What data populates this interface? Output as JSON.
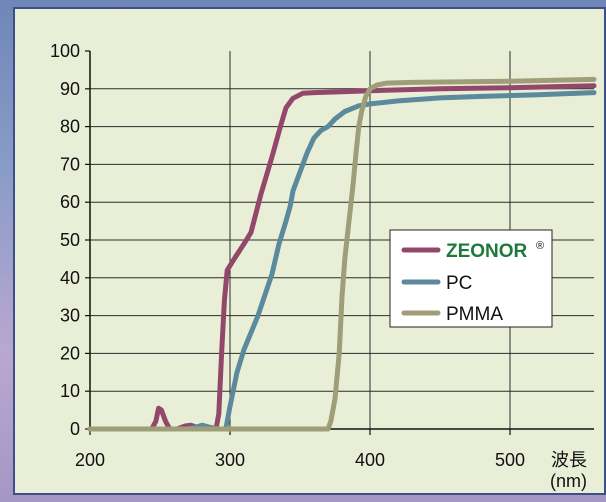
{
  "chart_data": {
    "type": "line",
    "x_unit_label": "波長",
    "x_unit_sub": "(nm)",
    "xlim": [
      200,
      560
    ],
    "ylim": [
      0,
      100
    ],
    "x_ticks": [
      200,
      300,
      400,
      500
    ],
    "y_ticks": [
      0,
      10,
      20,
      30,
      40,
      50,
      60,
      70,
      80,
      90,
      100
    ],
    "grid": "vertical at 300/400/500, horizontal at 10s",
    "legend_position": "center-right",
    "series": [
      {
        "name": "ZEONOR",
        "name_mark": "®",
        "color": "#93486b",
        "points": [
          [
            200,
            0
          ],
          [
            244,
            0
          ],
          [
            247,
            2
          ],
          [
            249,
            5.5
          ],
          [
            251,
            5
          ],
          [
            254,
            2
          ],
          [
            257,
            0
          ],
          [
            262,
            0
          ],
          [
            268,
            0.8
          ],
          [
            272,
            1
          ],
          [
            276,
            0.5
          ],
          [
            282,
            0
          ],
          [
            290,
            0
          ],
          [
            292,
            4
          ],
          [
            294,
            20
          ],
          [
            296,
            34
          ],
          [
            298,
            42
          ],
          [
            303,
            45
          ],
          [
            310,
            49
          ],
          [
            315,
            52
          ],
          [
            322,
            62
          ],
          [
            330,
            72
          ],
          [
            336,
            80
          ],
          [
            340,
            85
          ],
          [
            345,
            87.5
          ],
          [
            352,
            88.8
          ],
          [
            360,
            89
          ],
          [
            380,
            89.2
          ],
          [
            400,
            89.5
          ],
          [
            450,
            90
          ],
          [
            500,
            90.3
          ],
          [
            560,
            90.8
          ]
        ]
      },
      {
        "name": "PC",
        "color": "#5b8a9c",
        "points": [
          [
            200,
            0
          ],
          [
            270,
            0
          ],
          [
            276,
            0.5
          ],
          [
            280,
            1
          ],
          [
            285,
            0.5
          ],
          [
            292,
            0
          ],
          [
            297,
            0
          ],
          [
            300,
            6
          ],
          [
            305,
            15
          ],
          [
            310,
            21
          ],
          [
            320,
            30
          ],
          [
            330,
            41
          ],
          [
            335,
            49
          ],
          [
            340,
            55
          ],
          [
            343,
            59
          ],
          [
            345,
            63
          ],
          [
            350,
            68
          ],
          [
            355,
            73
          ],
          [
            360,
            77
          ],
          [
            365,
            79
          ],
          [
            370,
            80
          ],
          [
            375,
            82
          ],
          [
            382,
            84
          ],
          [
            392,
            85.5
          ],
          [
            400,
            86
          ],
          [
            420,
            86.8
          ],
          [
            450,
            87.6
          ],
          [
            480,
            88
          ],
          [
            520,
            88.4
          ],
          [
            560,
            89
          ]
        ]
      },
      {
        "name": "PMMA",
        "color": "#9f9e78",
        "points": [
          [
            200,
            0
          ],
          [
            370,
            0
          ],
          [
            372,
            2
          ],
          [
            375,
            8
          ],
          [
            378,
            20
          ],
          [
            380,
            35
          ],
          [
            382,
            45
          ],
          [
            385,
            55
          ],
          [
            388,
            65
          ],
          [
            390,
            73
          ],
          [
            392,
            80
          ],
          [
            394,
            84
          ],
          [
            397,
            88
          ],
          [
            400,
            90
          ],
          [
            405,
            91
          ],
          [
            412,
            91.5
          ],
          [
            430,
            91.7
          ],
          [
            500,
            92
          ],
          [
            560,
            92.5
          ]
        ]
      }
    ]
  },
  "colors": {
    "frame": "#6f86b8",
    "panel_bg": "#e9efd7",
    "grid": "#2b2b2b",
    "zeonor_text": "#1e7a3c"
  }
}
